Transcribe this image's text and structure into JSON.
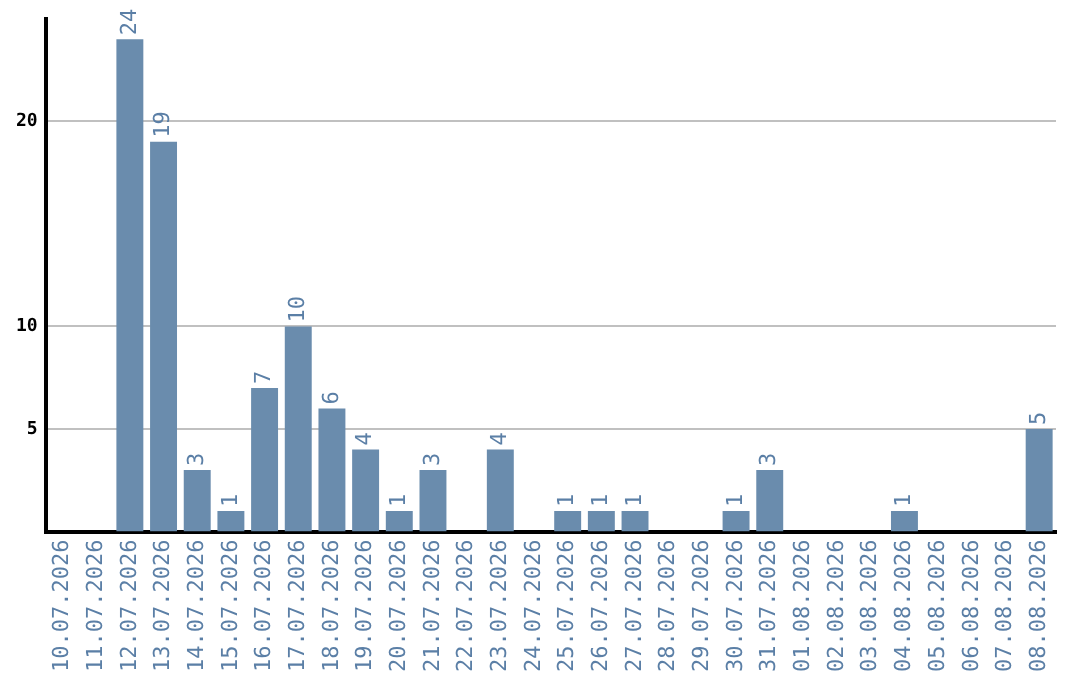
{
  "chart_data": {
    "type": "bar",
    "categories": [
      "10.07.2026",
      "11.07.2026",
      "12.07.2026",
      "13.07.2026",
      "14.07.2026",
      "15.07.2026",
      "16.07.2026",
      "17.07.2026",
      "18.07.2026",
      "19.07.2026",
      "20.07.2026",
      "21.07.2026",
      "22.07.2026",
      "23.07.2026",
      "24.07.2026",
      "25.07.2026",
      "26.07.2026",
      "27.07.2026",
      "28.07.2026",
      "29.07.2026",
      "30.07.2026",
      "31.07.2026",
      "01.08.2026",
      "02.08.2026",
      "03.08.2026",
      "04.08.2026",
      "05.08.2026",
      "06.08.2026",
      "07.08.2026",
      "08.08.2026"
    ],
    "values": [
      null,
      null,
      24,
      19,
      3,
      1,
      7,
      10,
      6,
      4,
      1,
      3,
      null,
      4,
      null,
      1,
      1,
      1,
      null,
      null,
      1,
      3,
      null,
      null,
      null,
      1,
      null,
      null,
      null,
      5
    ],
    "color": "#6a8cad",
    "ylim": [
      0,
      25
    ],
    "yticks": [
      5,
      10,
      20
    ],
    "grid": "y",
    "data_labels": true
  }
}
